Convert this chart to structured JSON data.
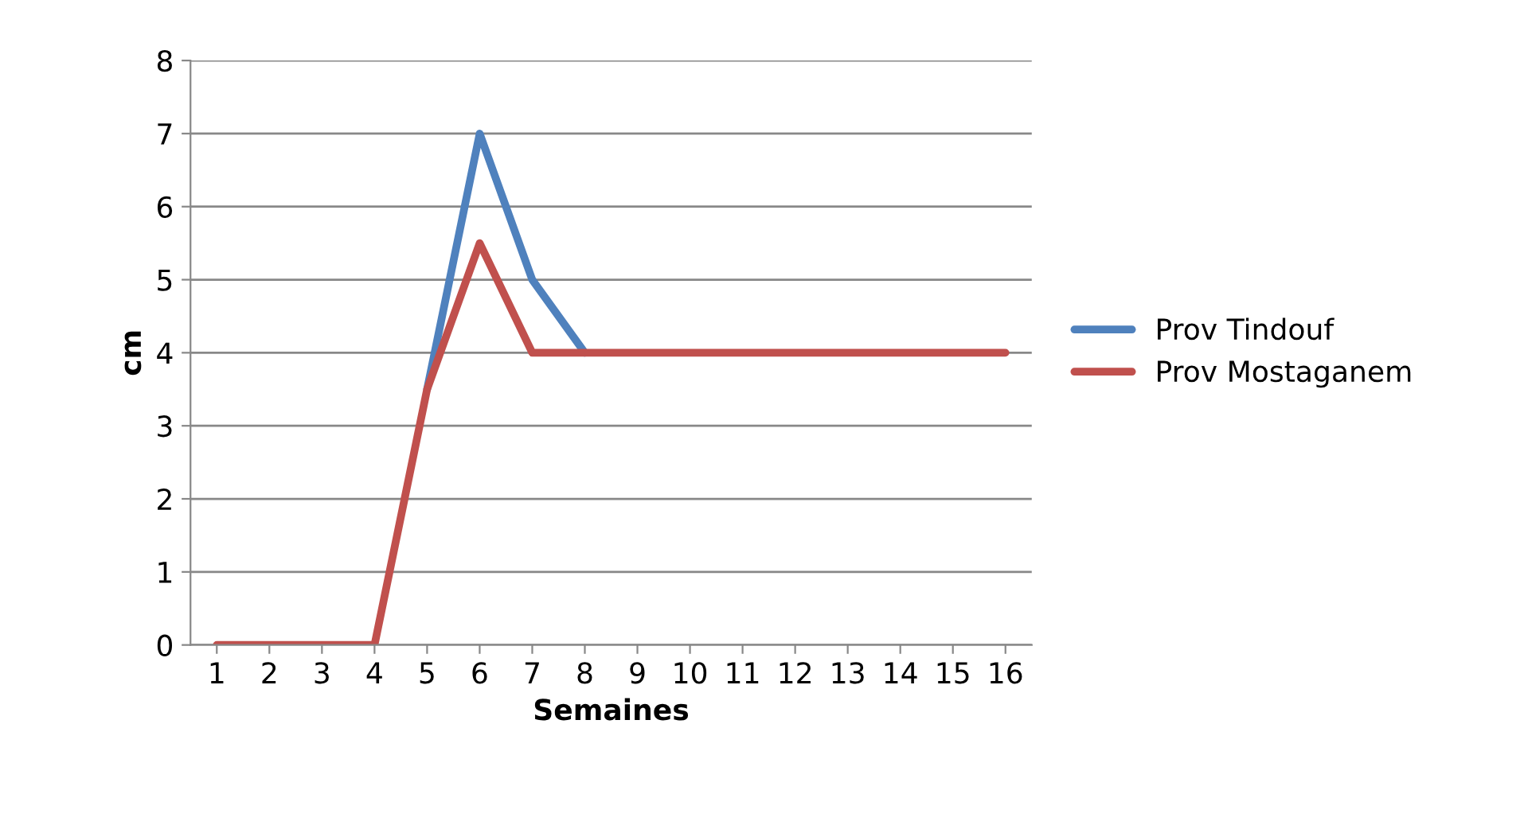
{
  "chart_data": {
    "type": "line",
    "xlabel": "Semaines",
    "ylabel": "cm",
    "categories": [
      "1",
      "2",
      "3",
      "4",
      "5",
      "6",
      "7",
      "8",
      "9",
      "10",
      "11",
      "12",
      "13",
      "14",
      "15",
      "16"
    ],
    "series": [
      {
        "name": "Prov Tindouf",
        "color": "#4f81bd",
        "values": [
          null,
          null,
          null,
          null,
          3.5,
          7,
          5,
          4,
          null,
          null,
          null,
          null,
          null,
          null,
          null,
          null
        ]
      },
      {
        "name": "Prov Mostaganem",
        "color": "#c0504d",
        "values": [
          0,
          0,
          0,
          0,
          3.5,
          5.5,
          4,
          4,
          4,
          4,
          4,
          4,
          4,
          4,
          4,
          4
        ]
      }
    ],
    "ylim": [
      0,
      8
    ],
    "yticks": [
      0,
      1,
      2,
      3,
      4,
      5,
      6,
      7,
      8
    ],
    "grid": "y",
    "legend": "right",
    "marker": "none",
    "line_style": "solid"
  }
}
